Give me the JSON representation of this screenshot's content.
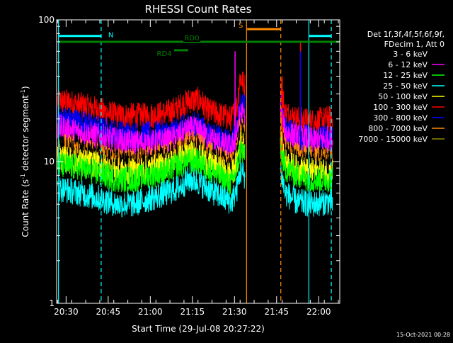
{
  "chart_data": {
    "type": "line",
    "title": "RHESSI Count Rates",
    "xlabel": "Start Time (29-Jul-08 20:27:22)",
    "ylabel_main": "Count Rate (s",
    "ylabel_sup1": "-1",
    "ylabel_mid": " detector segment",
    "ylabel_sup2": "-1",
    "ylabel_end": ")",
    "yscale": "log",
    "ylim": [
      1,
      100
    ],
    "xlim_minutes": [
      -3.37,
      97.5
    ],
    "x_ticks": [
      {
        "label": "20:30",
        "minute": 0
      },
      {
        "label": "20:45",
        "minute": 15
      },
      {
        "label": "21:00",
        "minute": 30
      },
      {
        "label": "21:15",
        "minute": 45
      },
      {
        "label": "21:30",
        "minute": 60
      },
      {
        "label": "21:45",
        "minute": 75
      },
      {
        "label": "22:00",
        "minute": 90
      }
    ],
    "y_ticks": [
      {
        "label": "1",
        "value": 1
      },
      {
        "label": "10",
        "value": 10
      },
      {
        "label": "100",
        "value": 100
      }
    ],
    "legend": {
      "position": "top-right",
      "header": [
        "Det 1f,3f,4f,5f,6f,9f,",
        "FDecim 1, Att 0"
      ],
      "entries": [
        {
          "label": "3 - 6 keV",
          "color": "#000000"
        },
        {
          "label": "6 - 12 keV",
          "color": "#ff00ff"
        },
        {
          "label": "12 - 25 keV",
          "color": "#00ff00"
        },
        {
          "label": "25 - 50 keV",
          "color": "#00ffff"
        },
        {
          "label": "50 - 100 keV",
          "color": "#ffff00"
        },
        {
          "label": "100 - 300 keV",
          "color": "#ff0000"
        },
        {
          "label": "300 - 800 keV",
          "color": "#0000ff"
        },
        {
          "label": "800 - 7000 keV",
          "color": "#ff8c00"
        },
        {
          "label": "7000 - 15000 keV",
          "color": "#8b8b00"
        }
      ]
    },
    "gap": {
      "start_minute": 63.7,
      "end_minute": 76.3
    },
    "spikes": [
      {
        "color": "#ff00ff",
        "minute": 60.2,
        "value": 60
      },
      {
        "color": "#ff0000",
        "minute": 77.0,
        "value": 40
      },
      {
        "color": "#ff0000",
        "minute": 83.5,
        "value": 70
      },
      {
        "color": "#0000ff",
        "minute": 83.5,
        "value": 60
      }
    ],
    "series": [
      {
        "color": "#ff0000",
        "base": [
          [
            -3,
            27
          ],
          [
            5,
            25
          ],
          [
            12,
            23
          ],
          [
            18,
            21
          ],
          [
            24,
            21
          ],
          [
            30,
            21
          ],
          [
            36,
            22
          ],
          [
            40,
            24
          ],
          [
            44,
            27
          ],
          [
            48,
            27
          ],
          [
            50,
            23
          ],
          [
            56,
            21
          ],
          [
            59,
            20
          ],
          [
            61,
            25
          ],
          [
            62,
            40
          ],
          [
            63.5,
            34
          ],
          [
            76.5,
            34
          ],
          [
            78,
            22
          ],
          [
            82,
            20
          ],
          [
            88,
            19
          ],
          [
            93,
            20
          ],
          [
            95,
            20
          ]
        ]
      },
      {
        "color": "#0000ff",
        "base": [
          [
            -3,
            20.5
          ],
          [
            5,
            19
          ],
          [
            12,
            17
          ],
          [
            18,
            16
          ],
          [
            24,
            15.5
          ],
          [
            30,
            15.5
          ],
          [
            36,
            16
          ],
          [
            40,
            16.5
          ],
          [
            44,
            18.5
          ],
          [
            47,
            18
          ],
          [
            50,
            16
          ],
          [
            56,
            14
          ],
          [
            59,
            13.5
          ],
          [
            61,
            18
          ],
          [
            62,
            26
          ],
          [
            63.5,
            24
          ],
          [
            76.5,
            25
          ],
          [
            78,
            17
          ],
          [
            82,
            15.5
          ],
          [
            88,
            14.5
          ],
          [
            93,
            15
          ],
          [
            95,
            15
          ]
        ]
      },
      {
        "color": "#ff00ff",
        "base": [
          [
            -3,
            17.5
          ],
          [
            5,
            16
          ],
          [
            12,
            15
          ],
          [
            18,
            14
          ],
          [
            24,
            13.5
          ],
          [
            30,
            13.5
          ],
          [
            36,
            14
          ],
          [
            40,
            15
          ],
          [
            44,
            17
          ],
          [
            47,
            16.5
          ],
          [
            50,
            15
          ],
          [
            56,
            13
          ],
          [
            59,
            12.5
          ],
          [
            61,
            16
          ],
          [
            62,
            22
          ],
          [
            63.5,
            21
          ],
          [
            76.5,
            22
          ],
          [
            78,
            16
          ],
          [
            82,
            15
          ],
          [
            88,
            14
          ],
          [
            93,
            14.5
          ],
          [
            95,
            14.5
          ]
        ]
      },
      {
        "color": "#ff8c00",
        "base": [
          [
            -3,
            13
          ],
          [
            5,
            12
          ],
          [
            12,
            11
          ],
          [
            18,
            10
          ],
          [
            24,
            10
          ],
          [
            30,
            10.5
          ],
          [
            36,
            11
          ],
          [
            40,
            12
          ],
          [
            44,
            13.5
          ],
          [
            47,
            13
          ],
          [
            50,
            11.5
          ],
          [
            56,
            10
          ],
          [
            59,
            9.5
          ],
          [
            61,
            12
          ],
          [
            62,
            17
          ],
          [
            63.5,
            16
          ],
          [
            76.5,
            17
          ],
          [
            78,
            12
          ],
          [
            82,
            11
          ],
          [
            88,
            10.5
          ],
          [
            93,
            10.5
          ],
          [
            95,
            10.5
          ]
        ]
      },
      {
        "color": "#000000",
        "base": [
          [
            -3,
            12.5
          ],
          [
            5,
            11.5
          ],
          [
            12,
            10.5
          ],
          [
            18,
            9.5
          ],
          [
            24,
            9.5
          ],
          [
            30,
            10
          ],
          [
            36,
            10.5
          ],
          [
            40,
            11.5
          ],
          [
            44,
            12.5
          ],
          [
            47,
            12
          ],
          [
            50,
            11
          ],
          [
            56,
            9.5
          ],
          [
            59,
            9
          ],
          [
            61,
            11
          ],
          [
            62,
            16
          ],
          [
            63.5,
            15
          ],
          [
            76.5,
            16
          ],
          [
            78,
            11
          ],
          [
            82,
            10
          ],
          [
            88,
            9.5
          ],
          [
            93,
            9.5
          ],
          [
            95,
            9.5
          ]
        ]
      },
      {
        "color": "#ffff00",
        "base": [
          [
            -3,
            10.5
          ],
          [
            5,
            10
          ],
          [
            12,
            9.5
          ],
          [
            18,
            8.5
          ],
          [
            24,
            8.5
          ],
          [
            30,
            9
          ],
          [
            36,
            9.5
          ],
          [
            40,
            10.5
          ],
          [
            44,
            11.5
          ],
          [
            47,
            11
          ],
          [
            50,
            10
          ],
          [
            56,
            8.5
          ],
          [
            59,
            8
          ],
          [
            61,
            10
          ],
          [
            62,
            14
          ],
          [
            63.5,
            13
          ],
          [
            76.5,
            14
          ],
          [
            78,
            10
          ],
          [
            82,
            9
          ],
          [
            88,
            8.5
          ],
          [
            93,
            8.5
          ],
          [
            95,
            8.5
          ]
        ]
      },
      {
        "color": "#00ff00",
        "base": [
          [
            -3,
            9.5
          ],
          [
            5,
            9
          ],
          [
            12,
            8.2
          ],
          [
            18,
            7.5
          ],
          [
            24,
            7.5
          ],
          [
            30,
            8
          ],
          [
            36,
            8.5
          ],
          [
            40,
            9.5
          ],
          [
            44,
            10
          ],
          [
            47,
            10
          ],
          [
            50,
            9
          ],
          [
            56,
            7.5
          ],
          [
            59,
            7
          ],
          [
            61,
            9
          ],
          [
            62,
            12
          ],
          [
            63.5,
            11.5
          ],
          [
            76.5,
            12
          ],
          [
            78,
            9
          ],
          [
            82,
            8
          ],
          [
            88,
            7.5
          ],
          [
            93,
            7.5
          ],
          [
            95,
            7.5
          ]
        ]
      },
      {
        "color": "#00ffff",
        "base": [
          [
            -3,
            6.5
          ],
          [
            5,
            6
          ],
          [
            12,
            5.5
          ],
          [
            18,
            5
          ],
          [
            24,
            5
          ],
          [
            30,
            5.5
          ],
          [
            36,
            6
          ],
          [
            40,
            6.5
          ],
          [
            44,
            7.5
          ],
          [
            47,
            7.2
          ],
          [
            50,
            6.5
          ],
          [
            56,
            5.5
          ],
          [
            59,
            5.2
          ],
          [
            61,
            6.5
          ],
          [
            62,
            8.5
          ],
          [
            63.5,
            8
          ],
          [
            76.5,
            8.5
          ],
          [
            78,
            6
          ],
          [
            82,
            5.2
          ],
          [
            88,
            5
          ],
          [
            93,
            5.2
          ],
          [
            95,
            5.2
          ]
        ]
      }
    ],
    "annotations": [
      {
        "label": "N",
        "color": "#00ffff",
        "segments": [
          [
            -2.5,
            12.5
          ],
          [
            86.5,
            94.5
          ]
        ],
        "value": 77
      },
      {
        "label": "RD0",
        "color": "#008000",
        "segments": [
          [
            -2.5,
            97.5
          ]
        ],
        "value": 70
      },
      {
        "label": "RD4",
        "color": "#008000",
        "segments": [
          [
            38.5,
            43.5
          ]
        ],
        "value": 61
      },
      {
        "label": "S",
        "color": "#ff8c00",
        "segments": [
          [
            64.5,
            76.5
          ]
        ],
        "value": 86
      }
    ],
    "vlines": [
      {
        "minute": -2.7,
        "color": "#00ffff",
        "style": "solid"
      },
      {
        "minute": 12.5,
        "color": "#00ffff",
        "style": "dashed"
      },
      {
        "minute": 64.3,
        "color": "#ff8c00",
        "style": "solid"
      },
      {
        "minute": 76.5,
        "color": "#ff8c00",
        "style": "dashed"
      },
      {
        "minute": 86.5,
        "color": "#00ffff",
        "style": "solid"
      },
      {
        "minute": 94.5,
        "color": "#00ffff",
        "style": "dashed"
      }
    ]
  },
  "footer_date": "15-Oct-2021 00:28"
}
